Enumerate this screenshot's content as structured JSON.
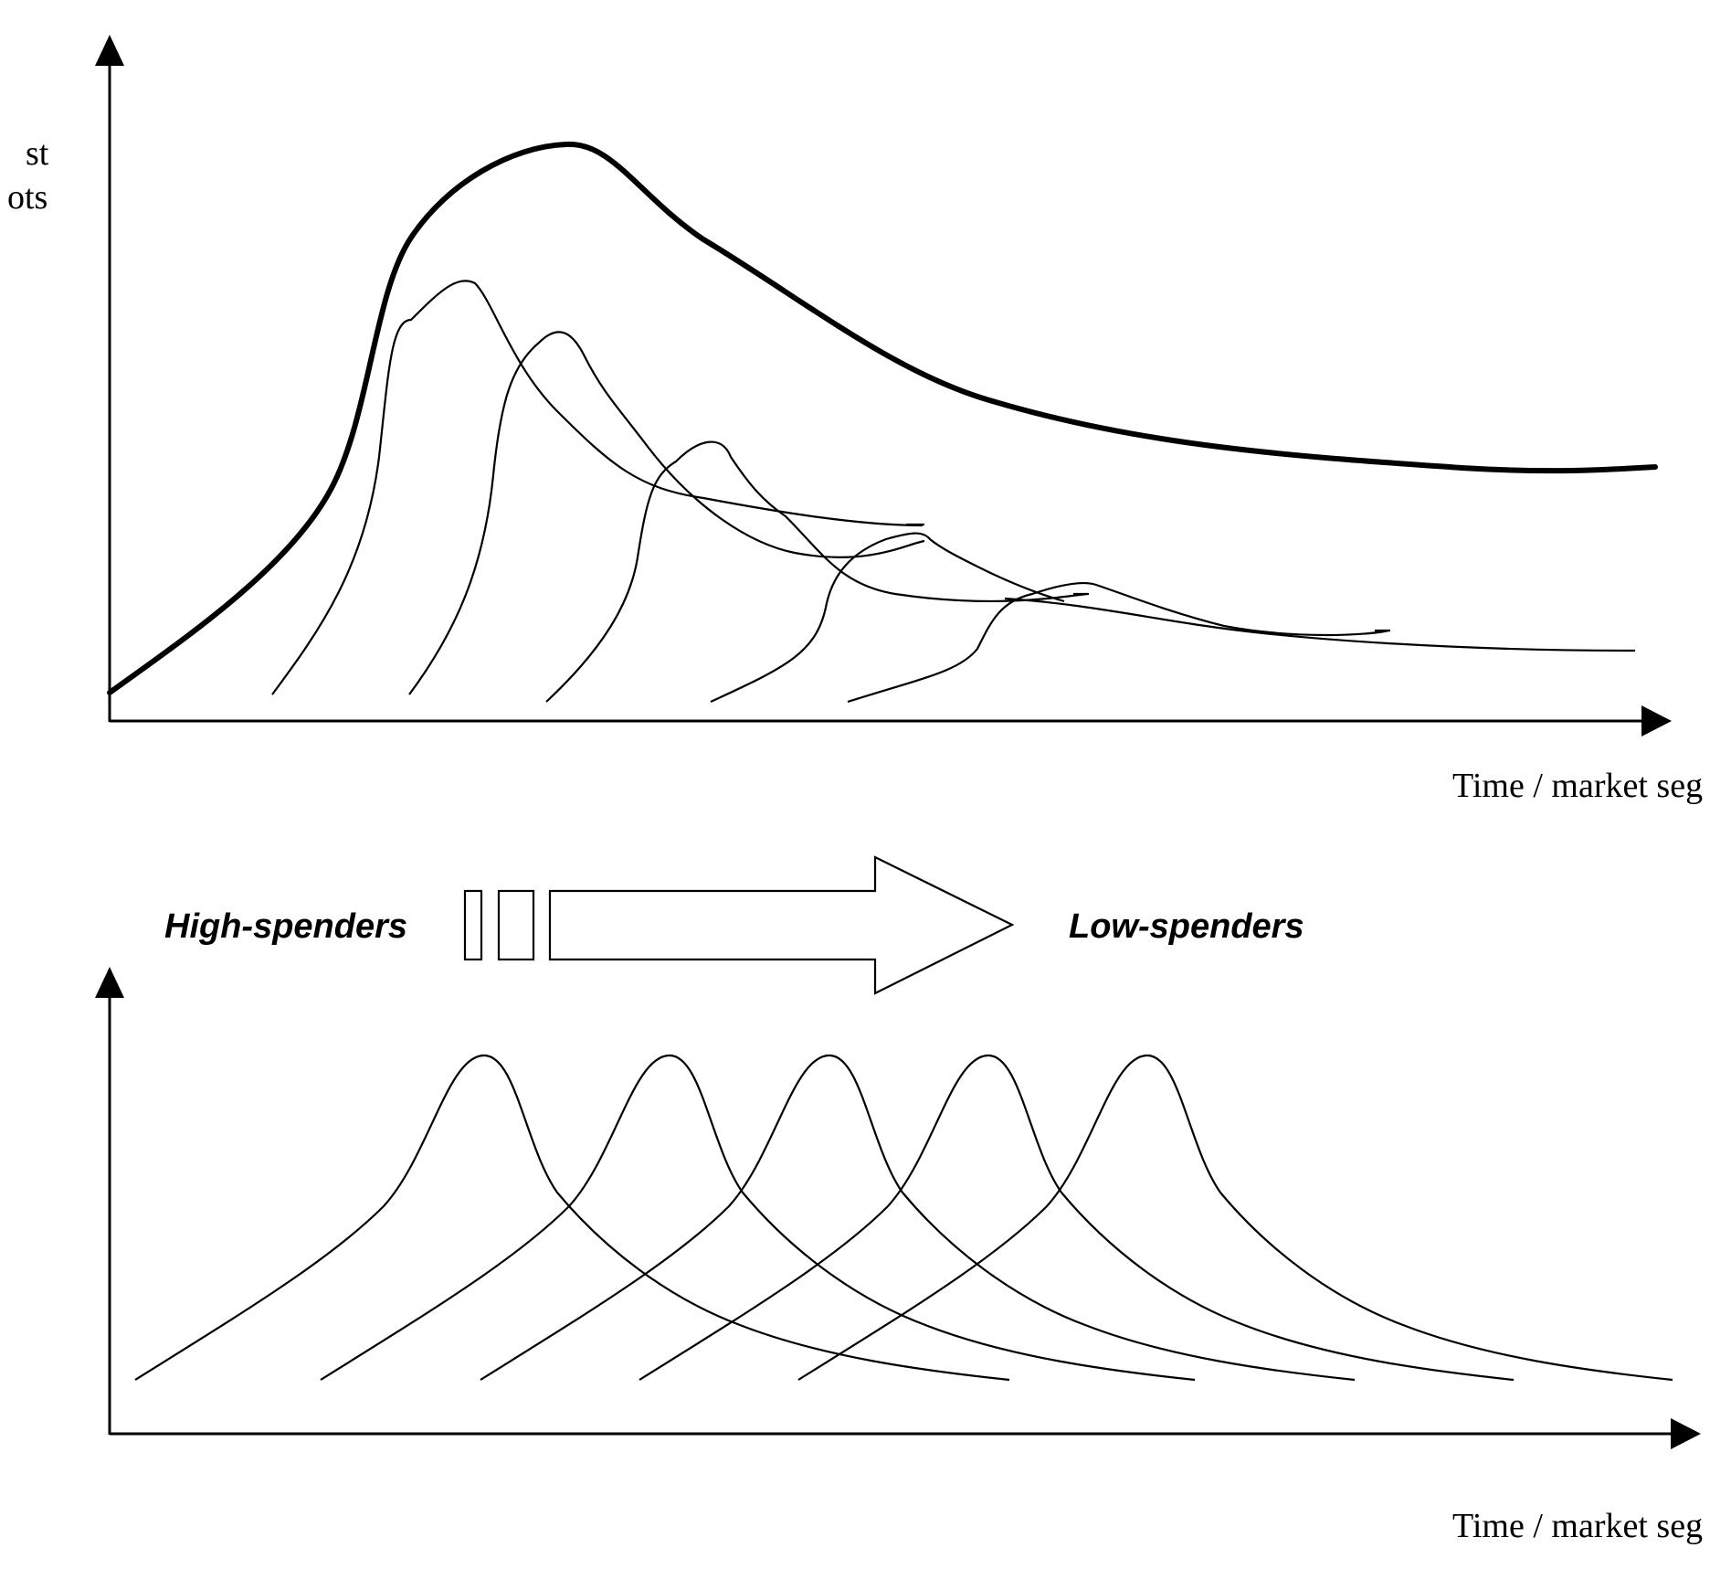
{
  "top_panel": {
    "y_axis_label_line1": "st",
    "y_axis_label_line2": "ots",
    "x_axis_label": "Time / market seg"
  },
  "middle": {
    "left_label": "High-spenders",
    "right_label": "Low-spenders"
  },
  "bottom_panel": {
    "x_axis_label": "Time / market seg"
  },
  "colors": {
    "ink": "#000000",
    "background": "#ffffff"
  }
}
